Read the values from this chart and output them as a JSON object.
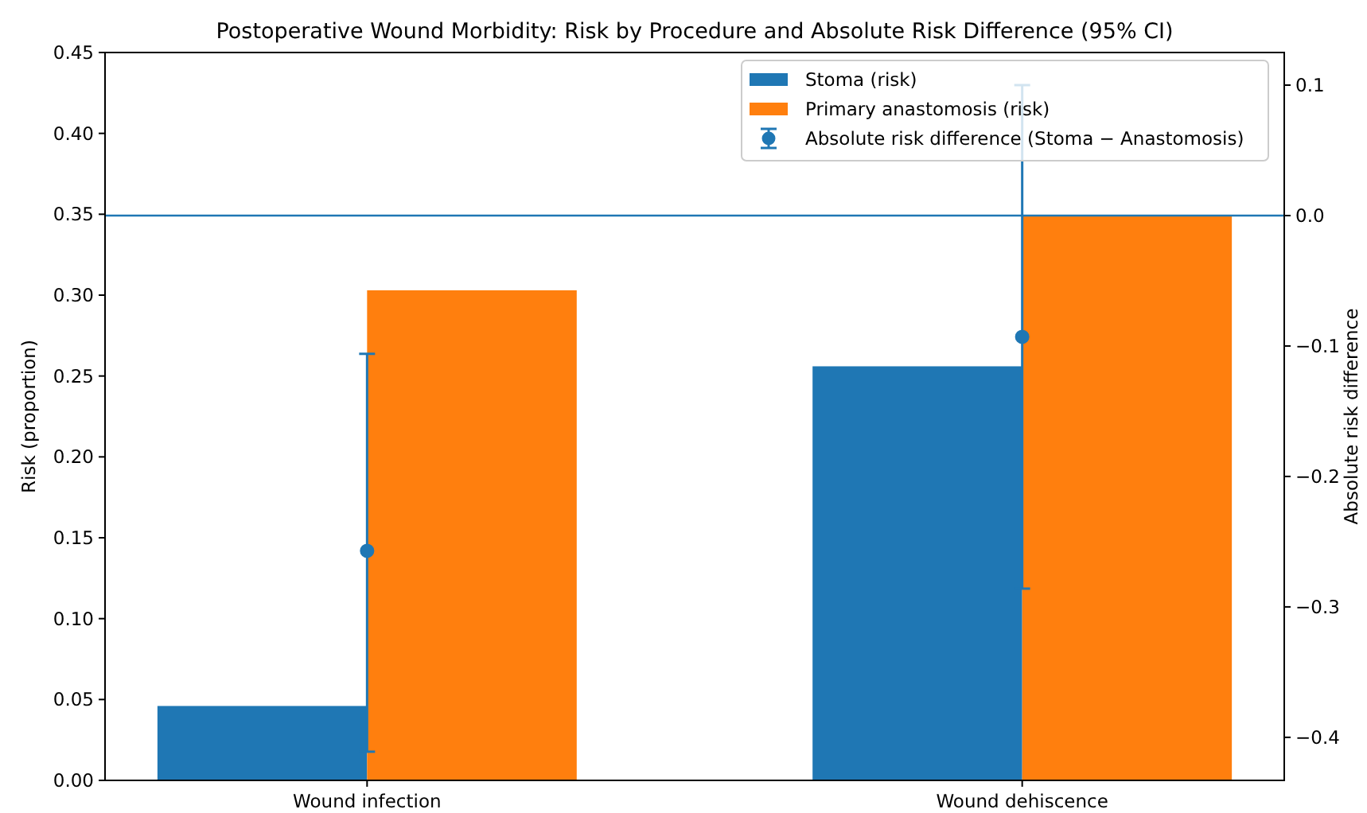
{
  "chart_data": {
    "type": "bar",
    "title": "Postoperative Wound Morbidity: Risk by Procedure and Absolute Risk Difference (95% CI)",
    "ylabel": "Risk (proportion)",
    "y2label": "Absolute risk difference",
    "categories": [
      "Wound infection",
      "Wound dehiscence"
    ],
    "series": [
      {
        "name": "Stoma (risk)",
        "color": "#1f77b4",
        "values": [
          0.046,
          0.256
        ]
      },
      {
        "name": "Primary anastomosis (risk)",
        "color": "#ff7f0e",
        "values": [
          0.303,
          0.349
        ]
      },
      {
        "name": "Absolute risk difference (Stoma − Anastomosis)",
        "type": "scatter",
        "axis": "y2",
        "color": "#1f77b4",
        "values": [
          -0.257,
          -0.093
        ],
        "errors": [
          [
            -0.411,
            -0.106
          ],
          [
            -0.286,
            0.1
          ]
        ]
      }
    ],
    "ylim": [
      0,
      0.45
    ],
    "yticks": [
      {
        "value": 0,
        "label": "0.00"
      },
      {
        "value": 0.05,
        "label": "0.05"
      },
      {
        "value": 0.1,
        "label": "0.10"
      },
      {
        "value": 0.15,
        "label": "0.15"
      },
      {
        "value": 0.2,
        "label": "0.20"
      },
      {
        "value": 0.25,
        "label": "0.25"
      },
      {
        "value": 0.3,
        "label": "0.30"
      },
      {
        "value": 0.35,
        "label": "0.35"
      },
      {
        "value": 0.4,
        "label": "0.40"
      },
      {
        "value": 0.45,
        "label": "0.45"
      }
    ],
    "y2lim": [
      -0.433,
      0.125
    ],
    "y2ticks": [
      {
        "value": 0.1,
        "label": "0.1"
      },
      {
        "value": 0,
        "label": "0.0"
      },
      {
        "value": -0.1,
        "label": "−0.1"
      },
      {
        "value": -0.2,
        "label": "−0.2"
      },
      {
        "value": -0.3,
        "label": "−0.3"
      },
      {
        "value": -0.4,
        "label": "−0.4"
      }
    ],
    "ref_lines": [
      {
        "axis": "y2",
        "value": 0,
        "color": "#1f77b4"
      }
    ],
    "marker": "circle",
    "legend": "top right",
    "grid": false
  }
}
